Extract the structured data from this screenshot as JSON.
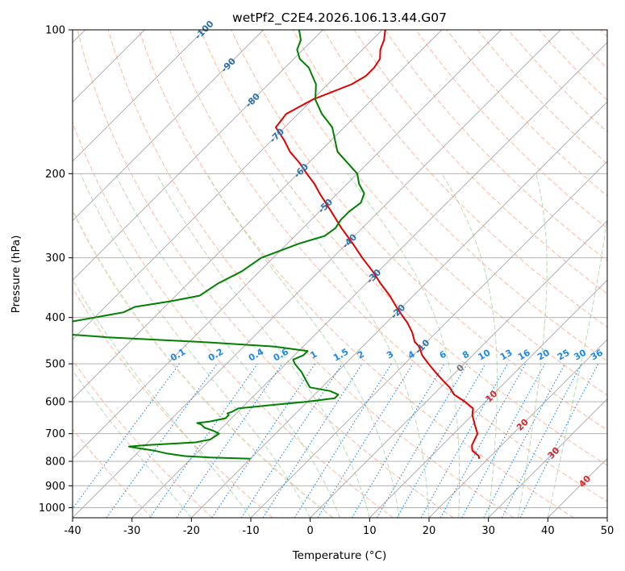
{
  "chart_data": {
    "type": "line",
    "title": "wetPf2_C2E4.2026.106.13.44.G07",
    "xlabel": "Temperature (°C)",
    "ylabel": "Pressure (hPa)",
    "xlim": [
      -40,
      50
    ],
    "ylim": [
      1050,
      100
    ],
    "y_scale": "log",
    "x_ticks": [
      "-40",
      "-30",
      "-20",
      "-10",
      "0",
      "10",
      "20",
      "30",
      "40",
      "50"
    ],
    "y_ticks": [
      "100",
      "200",
      "300",
      "400",
      "500",
      "600",
      "700",
      "800",
      "900",
      "1000"
    ],
    "grid": true,
    "skew": "45-degree skewed isotherms",
    "series": [
      {
        "id": "temperature",
        "color": "#e00000",
        "pressure": [
          790,
          780,
          760,
          740,
          720,
          700,
          670,
          640,
          620,
          600,
          580,
          560,
          540,
          520,
          500,
          480,
          460,
          450,
          430,
          410,
          400,
          380,
          360,
          340,
          320,
          300,
          280,
          260,
          240,
          220,
          210,
          200,
          190,
          180,
          170,
          160,
          150,
          140,
          130,
          125,
          120,
          115,
          110,
          105,
          100
        ],
        "temperature": [
          18.5,
          18.0,
          16.0,
          15.0,
          14.5,
          14.0,
          12.0,
          10.0,
          9.0,
          6.5,
          3.5,
          1.5,
          -1.0,
          -3.5,
          -6.0,
          -8.5,
          -10.5,
          -12.0,
          -14.0,
          -16.5,
          -18.0,
          -21.0,
          -24.0,
          -27.5,
          -31.0,
          -35.0,
          -39.0,
          -43.5,
          -48.0,
          -53.0,
          -55.5,
          -58.5,
          -61.5,
          -65.0,
          -68.0,
          -71.5,
          -72.0,
          -70.0,
          -66.0,
          -65.0,
          -65.0,
          -65.5,
          -67.0,
          -68.0,
          -69.5
        ]
      },
      {
        "id": "dewpoint",
        "color": "#008000",
        "pressure": [
          790,
          785,
          780,
          770,
          760,
          750,
          745,
          740,
          730,
          720,
          700,
          690,
          680,
          670,
          665,
          660,
          650,
          640,
          635,
          630,
          620,
          610,
          600,
          590,
          580,
          570,
          560,
          540,
          520,
          500,
          490,
          480,
          470,
          460,
          450,
          440,
          430,
          420,
          410,
          400,
          390,
          380,
          370,
          360,
          340,
          320,
          300,
          280,
          270,
          260,
          250,
          240,
          230,
          220,
          210,
          200,
          180,
          160,
          150,
          140,
          130,
          120,
          115,
          110,
          105,
          100
        ],
        "temperature": [
          -20.0,
          -27.0,
          -31.5,
          -35.0,
          -37.5,
          -41.0,
          -42.5,
          -40.0,
          -32.0,
          -30.0,
          -29.5,
          -31.0,
          -33.0,
          -34.0,
          -35.0,
          -33.0,
          -31.0,
          -31.0,
          -31.5,
          -31.0,
          -30.5,
          -25.5,
          -20.0,
          -16.0,
          -16.0,
          -18.0,
          -22.0,
          -24.0,
          -26.0,
          -28.5,
          -29.5,
          -28.5,
          -28.5,
          -35.0,
          -48.0,
          -64.5,
          -76.0,
          -78.0,
          -74.0,
          -70.0,
          -66.0,
          -65.0,
          -60.0,
          -56.0,
          -55.0,
          -53.0,
          -52.0,
          -48.0,
          -45.0,
          -44.5,
          -45.0,
          -45.0,
          -44.5,
          -45.5,
          -48.0,
          -50.0,
          -57.0,
          -62.0,
          -66.0,
          -69.5,
          -72.0,
          -76.0,
          -79.0,
          -81.0,
          -82.0,
          -84.0
        ]
      }
    ],
    "isotherm_labels": [
      "-100",
      "-90",
      "-80",
      "-70",
      "-60",
      "-50",
      "-40",
      "-30",
      "-20",
      "-10",
      "0",
      "10",
      "20",
      "30",
      "40"
    ],
    "mixing_ratio_labels": [
      "0.1",
      "0.2",
      "0.4",
      "0.6",
      "1",
      "1.5",
      "2",
      "3",
      "4",
      "6",
      "8",
      "10",
      "13",
      "16",
      "20",
      "25",
      "30",
      "36"
    ],
    "colors": {
      "isotherm": "#a8a8a8",
      "isotherm_label_cold": "#2c6fad",
      "isotherm_label_warm": "#d62728",
      "isotherm_label_zero": "#777777",
      "dry_adiabat": "#ffa07a",
      "moist_adiabat": "#9fd49f",
      "mixing_ratio": "#1e88e5",
      "dry_adiabat_strong": "#ddccaa"
    }
  }
}
